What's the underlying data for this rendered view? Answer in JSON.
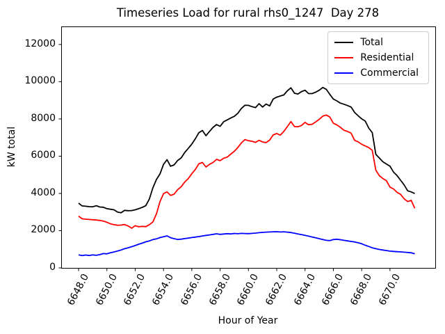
{
  "figure": {
    "title": "Timeseries Load for rural rhs0_1247  Day 278",
    "xlabel": "Hour of Year",
    "ylabel": "kW total"
  },
  "chart_data": {
    "type": "line",
    "title": "Timeseries Load for rural rhs0_1247  Day 278",
    "xlabel": "Hour of Year",
    "ylabel": "kW total",
    "xlim": [
      6646.82,
      6673.2
    ],
    "ylim": [
      0,
      12930
    ],
    "grid": false,
    "legend_position": "upper right",
    "x_ticks": {
      "values": [
        6648,
        6650,
        6652,
        6654,
        6656,
        6658,
        6660,
        6662,
        6664,
        6666,
        6668,
        6670
      ],
      "labels": [
        "6648.0",
        "6650.0",
        "6652.0",
        "6654.0",
        "6656.0",
        "6658.0",
        "6660.0",
        "6662.0",
        "6664.0",
        "6666.0",
        "6668.0",
        "6670.0"
      ]
    },
    "y_ticks": {
      "values": [
        0,
        2000,
        4000,
        6000,
        8000,
        10000,
        12000
      ],
      "labels": [
        "0",
        "2000",
        "4000",
        "6000",
        "8000",
        "10000",
        "12000"
      ]
    },
    "x": [
      6648.0,
      6648.25,
      6648.5,
      6648.75,
      6649.0,
      6649.25,
      6649.5,
      6649.75,
      6650.0,
      6650.25,
      6650.5,
      6650.75,
      6651.0,
      6651.25,
      6651.5,
      6651.75,
      6652.0,
      6652.25,
      6652.5,
      6652.75,
      6653.0,
      6653.25,
      6653.5,
      6653.75,
      6654.0,
      6654.25,
      6654.5,
      6654.75,
      6655.0,
      6655.25,
      6655.5,
      6655.75,
      6656.0,
      6656.25,
      6656.5,
      6656.75,
      6657.0,
      6657.25,
      6657.5,
      6657.75,
      6658.0,
      6658.25,
      6658.5,
      6658.75,
      6659.0,
      6659.25,
      6659.5,
      6659.75,
      6660.0,
      6660.25,
      6660.5,
      6660.75,
      6661.0,
      6661.25,
      6661.5,
      6661.75,
      6662.0,
      6662.25,
      6662.5,
      6662.75,
      6663.0,
      6663.25,
      6663.5,
      6663.75,
      6664.0,
      6664.25,
      6664.5,
      6664.75,
      6665.0,
      6665.25,
      6665.5,
      6665.75,
      6666.0,
      6666.25,
      6666.5,
      6666.75,
      6667.0,
      6667.25,
      6667.5,
      6667.75,
      6668.0,
      6668.25,
      6668.5,
      6668.75,
      6669.0,
      6669.25,
      6669.5,
      6669.75,
      6670.0,
      6670.25,
      6670.5,
      6670.75,
      6671.0,
      6671.25,
      6671.5,
      6671.75
    ],
    "series": [
      {
        "name": "Total",
        "color": "#000000",
        "values": [
          3480,
          3330,
          3310,
          3290,
          3280,
          3340,
          3270,
          3260,
          3180,
          3150,
          3120,
          3000,
          2960,
          3090,
          3070,
          3080,
          3120,
          3180,
          3250,
          3340,
          3700,
          4300,
          4750,
          5050,
          5560,
          5810,
          5460,
          5530,
          5770,
          5910,
          6200,
          6420,
          6650,
          6940,
          7260,
          7380,
          7100,
          7330,
          7550,
          7700,
          7600,
          7850,
          7950,
          8050,
          8140,
          8300,
          8560,
          8735,
          8730,
          8660,
          8610,
          8820,
          8640,
          8800,
          8700,
          9070,
          9170,
          9230,
          9290,
          9510,
          9670,
          9380,
          9340,
          9470,
          9540,
          9360,
          9360,
          9440,
          9540,
          9690,
          9590,
          9320,
          9070,
          8970,
          8850,
          8790,
          8720,
          8640,
          8350,
          8170,
          8010,
          7890,
          7510,
          7260,
          6100,
          5900,
          5700,
          5580,
          5460,
          5150,
          4960,
          4710,
          4460,
          4140,
          4080,
          3990
        ]
      },
      {
        "name": "Residential",
        "color": "#ff0000",
        "values": [
          2780,
          2640,
          2615,
          2600,
          2585,
          2570,
          2550,
          2515,
          2450,
          2370,
          2320,
          2290,
          2300,
          2330,
          2250,
          2130,
          2270,
          2210,
          2230,
          2215,
          2320,
          2470,
          2900,
          3560,
          3990,
          4080,
          3890,
          3960,
          4200,
          4360,
          4610,
          4800,
          5060,
          5290,
          5590,
          5660,
          5420,
          5560,
          5660,
          5830,
          5760,
          5890,
          5950,
          6110,
          6260,
          6460,
          6710,
          6890,
          6830,
          6800,
          6740,
          6850,
          6760,
          6730,
          6860,
          7140,
          7215,
          7130,
          7330,
          7590,
          7860,
          7590,
          7580,
          7650,
          7815,
          7690,
          7715,
          7840,
          7980,
          8150,
          8210,
          8100,
          7770,
          7680,
          7550,
          7390,
          7330,
          7240,
          6850,
          6770,
          6640,
          6550,
          6460,
          6310,
          5250,
          4950,
          4800,
          4680,
          4340,
          4240,
          4060,
          3950,
          3710,
          3560,
          3630,
          3200
        ]
      },
      {
        "name": "Commercial",
        "color": "#0000ff",
        "values": [
          700,
          660,
          690,
          665,
          700,
          675,
          715,
          770,
          755,
          810,
          855,
          905,
          960,
          1030,
          1080,
          1140,
          1200,
          1270,
          1330,
          1400,
          1450,
          1520,
          1560,
          1630,
          1670,
          1720,
          1620,
          1570,
          1530,
          1545,
          1575,
          1600,
          1630,
          1655,
          1680,
          1715,
          1745,
          1770,
          1800,
          1830,
          1800,
          1820,
          1840,
          1825,
          1850,
          1835,
          1855,
          1845,
          1840,
          1855,
          1870,
          1890,
          1905,
          1920,
          1930,
          1940,
          1945,
          1930,
          1940,
          1920,
          1900,
          1865,
          1825,
          1790,
          1750,
          1705,
          1660,
          1615,
          1570,
          1525,
          1480,
          1465,
          1520,
          1540,
          1515,
          1480,
          1450,
          1420,
          1395,
          1350,
          1295,
          1220,
          1150,
          1080,
          1030,
          990,
          960,
          930,
          900,
          885,
          870,
          860,
          845,
          830,
          810,
          760
        ]
      }
    ]
  }
}
